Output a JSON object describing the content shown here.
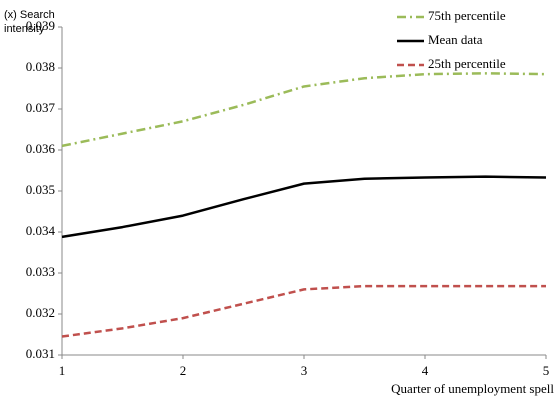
{
  "chart_data": {
    "type": "line",
    "y_label": "(x) Search intensity",
    "x_label": "Quarter of unemployment spell",
    "x": [
      1,
      1.5,
      2,
      2.5,
      3,
      3.5,
      4,
      4.5,
      5
    ],
    "series": [
      {
        "name": "75th percentile",
        "color": "#9bbb59",
        "dash": "dashdot",
        "values": [
          0.0361,
          0.0364,
          0.0367,
          0.0371,
          0.03755,
          0.03775,
          0.03785,
          0.03787,
          0.03785
        ]
      },
      {
        "name": "Mean data",
        "color": "#000000",
        "dash": "solid",
        "values": [
          0.03388,
          0.03412,
          0.0344,
          0.0348,
          0.03518,
          0.0353,
          0.03533,
          0.03535,
          0.03533
        ]
      },
      {
        "name": "25th percentile",
        "color": "#c0504d",
        "dash": "dashed",
        "values": [
          0.03145,
          0.03165,
          0.0319,
          0.03225,
          0.0326,
          0.03268,
          0.03268,
          0.03268,
          0.03268
        ]
      }
    ],
    "xlim": [
      1,
      5
    ],
    "xticks": [
      1,
      2,
      3,
      4,
      5
    ],
    "ylim": [
      0.031,
      0.039
    ],
    "yticks": [
      0.031,
      0.032,
      0.033,
      0.034,
      0.035,
      0.036,
      0.037,
      0.038,
      0.039
    ],
    "grid": false,
    "legend": "top-right"
  }
}
